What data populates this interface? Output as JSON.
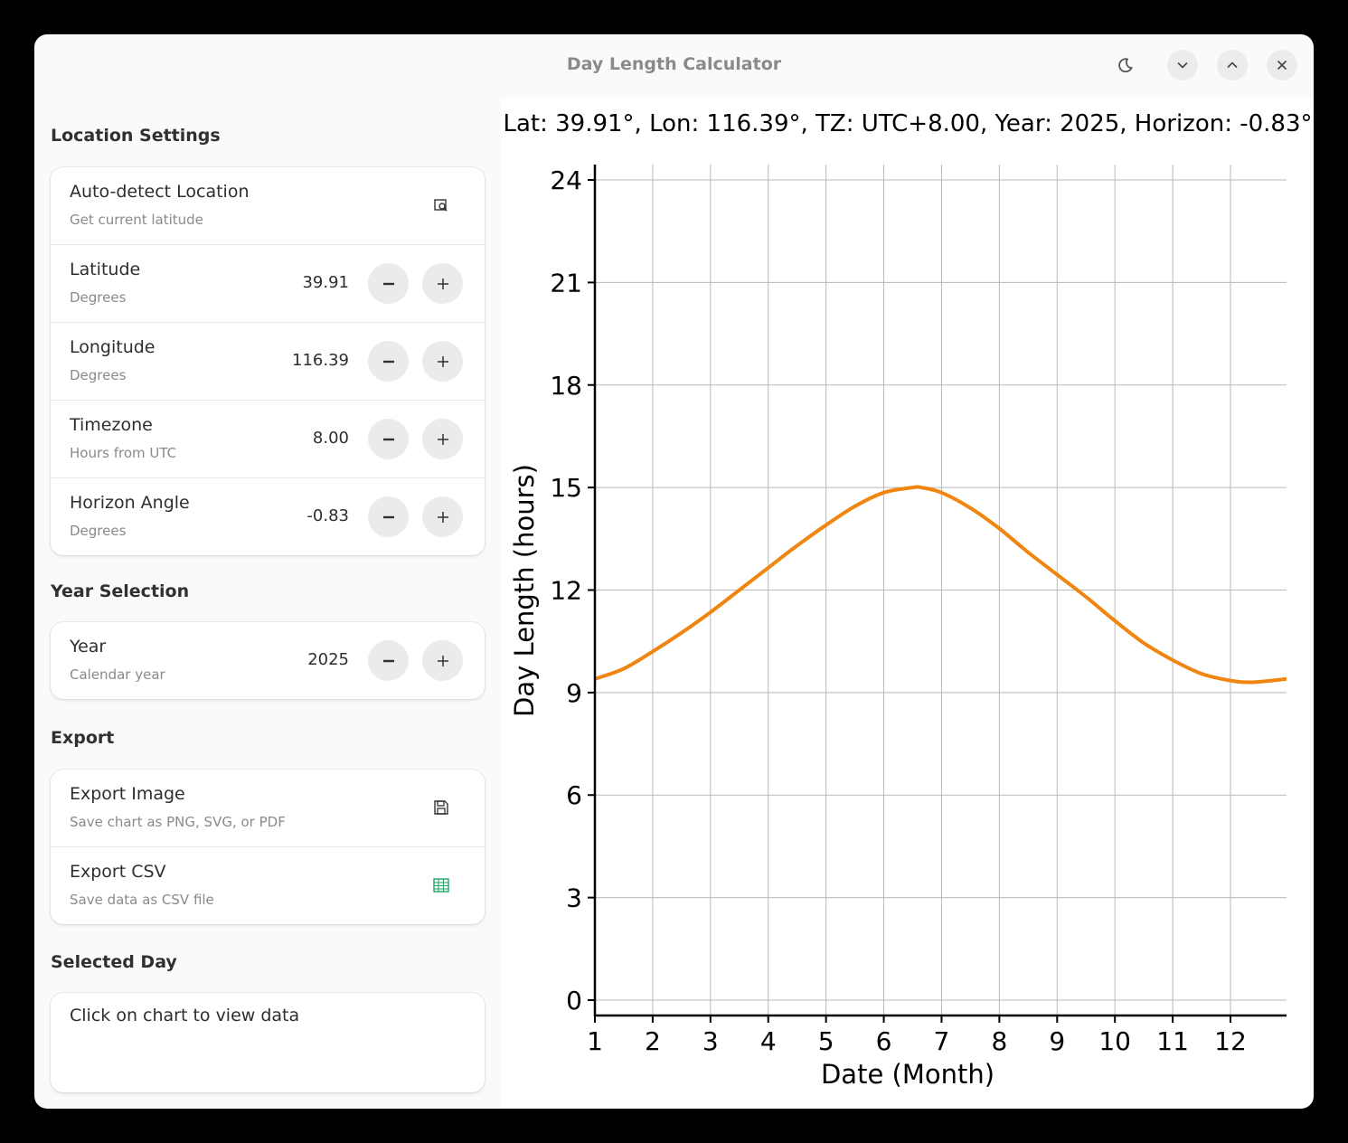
{
  "window": {
    "title": "Day Length Calculator"
  },
  "headerbar": {
    "buttons": [
      {
        "name": "dark-mode-button",
        "icon": "moon-icon"
      },
      {
        "name": "minimize-button",
        "icon": "chevron-down-icon"
      },
      {
        "name": "maximize-button",
        "icon": "chevron-up-icon"
      },
      {
        "name": "close-button",
        "icon": "close-icon"
      }
    ]
  },
  "sidebar": {
    "location_title": "Location Settings",
    "auto_detect": {
      "label": "Auto-detect Location",
      "sub": "Get current latitude",
      "icon": "location-search-icon"
    },
    "latitude": {
      "label": "Latitude",
      "sub": "Degrees",
      "value": "39.91"
    },
    "longitude": {
      "label": "Longitude",
      "sub": "Degrees",
      "value": "116.39"
    },
    "timezone": {
      "label": "Timezone",
      "sub": "Hours from UTC",
      "value": "8.00"
    },
    "horizon": {
      "label": "Horizon Angle",
      "sub": "Degrees",
      "value": "-0.83"
    },
    "year_title": "Year Selection",
    "year": {
      "label": "Year",
      "sub": "Calendar year",
      "value": "2025"
    },
    "export_title": "Export",
    "export_image": {
      "label": "Export Image",
      "sub": "Save chart as PNG, SVG, or PDF",
      "icon": "save-icon"
    },
    "export_csv": {
      "label": "Export CSV",
      "sub": "Save data as CSV file",
      "icon": "spreadsheet-icon",
      "icon_color": "#26a269"
    },
    "selected_title": "Selected Day",
    "selected_text": "Click on chart to view data"
  },
  "chart_data": {
    "type": "line",
    "title": "Lat: 39.91°, Lon: 116.39°, TZ: UTC+8.00, Year: 2025, Horizon: -0.83°",
    "xlabel": "Date (Month)",
    "ylabel": "Day Length (hours)",
    "x_ticks": [
      "1",
      "2",
      "3",
      "4",
      "5",
      "6",
      "7",
      "8",
      "9",
      "10",
      "11",
      "12"
    ],
    "y_ticks": [
      "0",
      "3",
      "6",
      "9",
      "12",
      "15",
      "18",
      "21",
      "24"
    ],
    "xlim": [
      1,
      12.97
    ],
    "ylim": [
      -0.45,
      24.45
    ],
    "grid": true,
    "line_color": "#f0850f",
    "series": [
      {
        "x": [
          1.0,
          1.5,
          2.0,
          2.5,
          3.0,
          3.5,
          4.0,
          4.5,
          5.0,
          5.5,
          6.0,
          6.5,
          6.65,
          7.0,
          7.5,
          8.0,
          8.5,
          9.0,
          9.5,
          10.0,
          10.5,
          11.0,
          11.5,
          12.0,
          12.3,
          12.6,
          12.97
        ],
        "y": [
          9.4,
          9.7,
          10.2,
          10.75,
          11.35,
          12.0,
          12.65,
          13.3,
          13.9,
          14.45,
          14.85,
          15.0,
          15.0,
          14.85,
          14.4,
          13.8,
          13.1,
          12.45,
          11.8,
          11.1,
          10.45,
          9.95,
          9.55,
          9.35,
          9.3,
          9.33,
          9.4
        ]
      }
    ]
  }
}
